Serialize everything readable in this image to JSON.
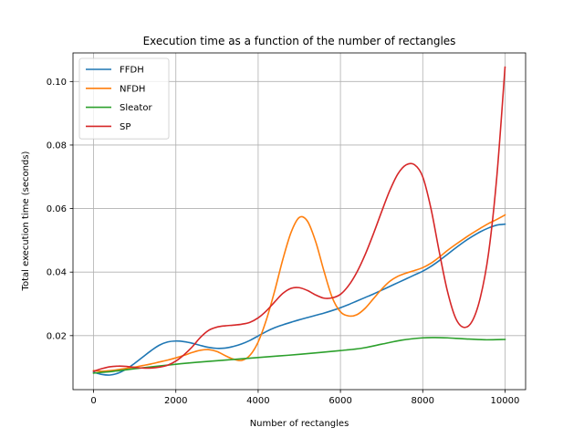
{
  "chart_data": {
    "type": "line",
    "title": "Execution time as a function of the number of rectangles",
    "xlabel": "Number of rectangles",
    "ylabel": "Total execution time (seconds)",
    "xlim": [
      -500,
      10500
    ],
    "ylim": [
      0.003,
      0.109
    ],
    "xticks": [
      0,
      2000,
      4000,
      6000,
      8000,
      10000
    ],
    "xtick_labels": [
      "0",
      "2000",
      "4000",
      "6000",
      "8000",
      "10000"
    ],
    "yticks": [
      0.02,
      0.04,
      0.06,
      0.08,
      0.1
    ],
    "ytick_labels": [
      "0.02",
      "0.04",
      "0.06",
      "0.08",
      "0.10"
    ],
    "grid": true,
    "legend_position": "top-left",
    "series": [
      {
        "name": "FFDH",
        "color": "#1f77b4",
        "x": [
          0,
          200,
          400,
          600,
          800,
          1000,
          1200,
          1400,
          1600,
          1800,
          2000,
          2200,
          2400,
          2600,
          2800,
          3000,
          3200,
          3400,
          3600,
          3800,
          4000,
          4200,
          4400,
          4600,
          4800,
          5000,
          5200,
          5400,
          5600,
          5800,
          6000,
          6200,
          6400,
          6600,
          6800,
          7000,
          7200,
          7400,
          7600,
          7800,
          8000,
          8200,
          8400,
          8600,
          8800,
          9000,
          9200,
          9400,
          9600,
          9800,
          10000
        ],
        "y": [
          0.0085,
          0.0078,
          0.0076,
          0.0082,
          0.0095,
          0.0113,
          0.0133,
          0.0153,
          0.017,
          0.018,
          0.0183,
          0.0181,
          0.0176,
          0.0169,
          0.0163,
          0.016,
          0.0161,
          0.0166,
          0.0174,
          0.0185,
          0.0199,
          0.0213,
          0.0225,
          0.0234,
          0.0242,
          0.025,
          0.0257,
          0.0264,
          0.0271,
          0.0279,
          0.0288,
          0.0298,
          0.0309,
          0.032,
          0.0331,
          0.0343,
          0.0355,
          0.0367,
          0.0379,
          0.0391,
          0.0403,
          0.0418,
          0.0436,
          0.0456,
          0.0476,
          0.0495,
          0.0512,
          0.0527,
          0.0539,
          0.0548,
          0.0551
        ]
      },
      {
        "name": "NFDH",
        "color": "#ff7f0e",
        "x": [
          0,
          200,
          400,
          600,
          800,
          1000,
          1200,
          1400,
          1600,
          1800,
          2000,
          2200,
          2400,
          2600,
          2800,
          3000,
          3200,
          3400,
          3600,
          3800,
          4000,
          4200,
          4400,
          4600,
          4800,
          5000,
          5200,
          5400,
          5600,
          5800,
          6000,
          6200,
          6400,
          6600,
          6800,
          7000,
          7200,
          7400,
          7600,
          7800,
          8000,
          8200,
          8400,
          8600,
          8800,
          9000,
          9200,
          9400,
          9600,
          9800,
          10000
        ],
        "y": [
          0.009,
          0.0088,
          0.009,
          0.0093,
          0.0097,
          0.0101,
          0.0106,
          0.0111,
          0.0117,
          0.0123,
          0.013,
          0.0138,
          0.0147,
          0.0154,
          0.0156,
          0.015,
          0.0137,
          0.0126,
          0.0122,
          0.0138,
          0.018,
          0.025,
          0.034,
          0.044,
          0.0525,
          0.0572,
          0.056,
          0.0495,
          0.0403,
          0.032,
          0.0275,
          0.0262,
          0.0266,
          0.0286,
          0.0316,
          0.0346,
          0.0371,
          0.0387,
          0.0397,
          0.0405,
          0.0414,
          0.0428,
          0.0447,
          0.0468,
          0.0487,
          0.0505,
          0.0522,
          0.0538,
          0.0553,
          0.0566,
          0.058
        ]
      },
      {
        "name": "Sleator",
        "color": "#2ca02c",
        "x": [
          0,
          500,
          1000,
          1500,
          2000,
          2500,
          3000,
          3500,
          4000,
          4500,
          5000,
          5500,
          6000,
          6500,
          7000,
          7500,
          8000,
          8300,
          8600,
          9000,
          9500,
          10000
        ],
        "y": [
          0.0082,
          0.0088,
          0.0096,
          0.0103,
          0.011,
          0.0116,
          0.0121,
          0.0126,
          0.0131,
          0.0136,
          0.0141,
          0.0147,
          0.0153,
          0.016,
          0.0173,
          0.0186,
          0.0193,
          0.0194,
          0.0193,
          0.019,
          0.0187,
          0.0188
        ]
      },
      {
        "name": "SP",
        "color": "#d62728",
        "x": [
          0,
          200,
          400,
          600,
          800,
          1000,
          1200,
          1400,
          1600,
          1800,
          2000,
          2200,
          2400,
          2600,
          2800,
          3000,
          3200,
          3400,
          3600,
          3800,
          4000,
          4200,
          4400,
          4600,
          4800,
          5000,
          5200,
          5400,
          5600,
          5800,
          6000,
          6200,
          6400,
          6600,
          6800,
          7000,
          7200,
          7400,
          7600,
          7800,
          8000,
          8200,
          8400,
          8600,
          8800,
          9000,
          9200,
          9400,
          9600,
          9800,
          10000
        ],
        "y": [
          0.0088,
          0.0096,
          0.0102,
          0.0104,
          0.0103,
          0.01,
          0.0098,
          0.0098,
          0.0101,
          0.0107,
          0.012,
          0.014,
          0.0165,
          0.0195,
          0.0217,
          0.0227,
          0.0231,
          0.0233,
          0.0236,
          0.0242,
          0.0256,
          0.0278,
          0.0306,
          0.0333,
          0.0349,
          0.0351,
          0.0342,
          0.0328,
          0.0318,
          0.0319,
          0.033,
          0.0358,
          0.04,
          0.0455,
          0.052,
          0.059,
          0.0657,
          0.071,
          0.0738,
          0.0738,
          0.07,
          0.06,
          0.0465,
          0.034,
          0.0255,
          0.0226,
          0.0245,
          0.032,
          0.046,
          0.07,
          0.1045
        ]
      }
    ]
  }
}
